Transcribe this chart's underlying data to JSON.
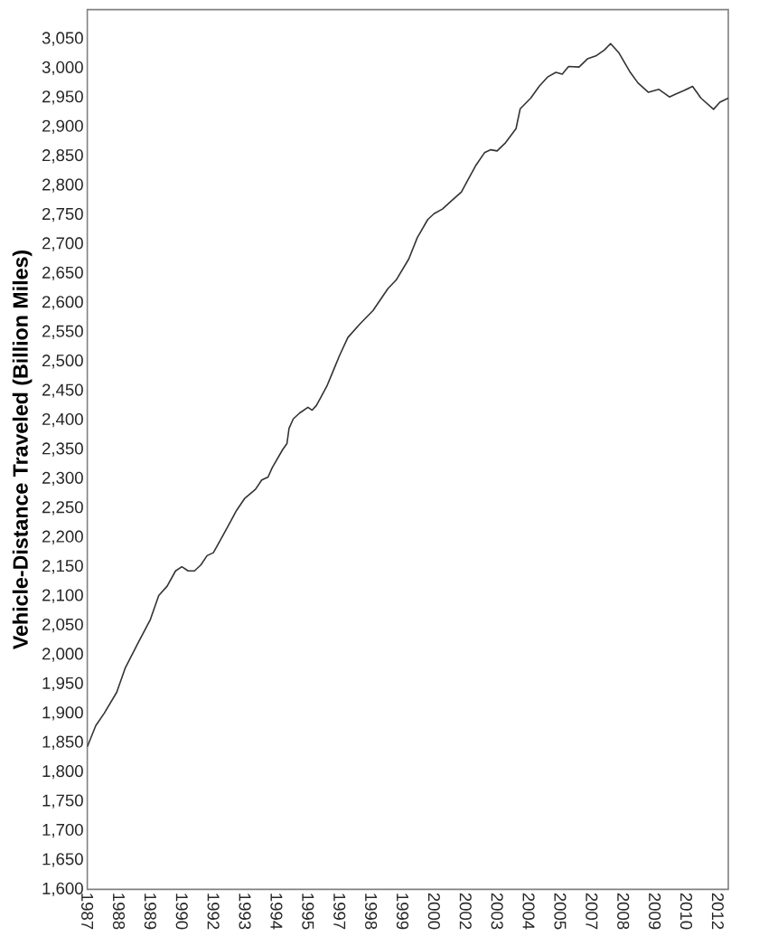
{
  "chart_data": {
    "type": "line",
    "ylabel": "Vehicle-Distance Traveled (Billion Miles)",
    "color": "#333333",
    "x": [
      "1987-01",
      "1987-05",
      "1987-09",
      "1988-03",
      "1988-07",
      "1989-01",
      "1989-07",
      "1989-11",
      "1990-03",
      "1990-07",
      "1990-10",
      "1991-01",
      "1991-04",
      "1991-07",
      "1991-10",
      "1992-01",
      "1992-05",
      "1992-09",
      "1992-12",
      "1993-04",
      "1993-09",
      "1993-12",
      "1994-03",
      "1994-05",
      "1994-10",
      "1994-12",
      "1995-01",
      "1995-03",
      "1995-06",
      "1995-10",
      "1995-12",
      "1996-02",
      "1996-04",
      "1996-07",
      "1996-10",
      "1997-01",
      "1997-05",
      "1997-11",
      "1998-05",
      "1998-12",
      "1999-04",
      "1999-10",
      "2000-02",
      "2000-07",
      "2000-10",
      "2001-02",
      "2001-06",
      "2001-11",
      "2002-02",
      "2002-06",
      "2002-10",
      "2003-01",
      "2003-04",
      "2003-08",
      "2004-01",
      "2004-03",
      "2004-08",
      "2004-12",
      "2005-04",
      "2005-08",
      "2005-11",
      "2006-02",
      "2006-07",
      "2006-11",
      "2007-03",
      "2007-07",
      "2007-10",
      "2008-02",
      "2008-07",
      "2008-11",
      "2009-04",
      "2009-09",
      "2010-02",
      "2010-05",
      "2010-09",
      "2011-01",
      "2011-05",
      "2011-11",
      "2012-02",
      "2012-06"
    ],
    "values": [
      1843,
      1879,
      1900,
      1936,
      1977,
      2019,
      2060,
      2101,
      2117,
      2143,
      2150,
      2143,
      2143,
      2153,
      2169,
      2174,
      2200,
      2226,
      2246,
      2267,
      2282,
      2298,
      2303,
      2319,
      2350,
      2360,
      2386,
      2402,
      2412,
      2422,
      2417,
      2425,
      2438,
      2458,
      2484,
      2510,
      2541,
      2565,
      2587,
      2624,
      2639,
      2675,
      2711,
      2742,
      2752,
      2760,
      2773,
      2789,
      2809,
      2835,
      2856,
      2861,
      2859,
      2873,
      2897,
      2931,
      2949,
      2969,
      2985,
      2993,
      2990,
      3003,
      3002,
      3016,
      3021,
      3031,
      3042,
      3026,
      2995,
      2975,
      2959,
      2964,
      2951,
      2956,
      2962,
      2969,
      2949,
      2930,
      2942,
      2949
    ],
    "xlim": [
      "1987-01",
      "2012-06"
    ],
    "xticks": [
      {
        "value": "1987-01",
        "label": "1987"
      },
      {
        "value": "1988-04",
        "label": "1988"
      },
      {
        "value": "1989-07",
        "label": "1989"
      },
      {
        "value": "1990-10",
        "label": "1990"
      },
      {
        "value": "1992-01",
        "label": "1992"
      },
      {
        "value": "1993-04",
        "label": "1993"
      },
      {
        "value": "1994-07",
        "label": "1994"
      },
      {
        "value": "1995-10",
        "label": "1995"
      },
      {
        "value": "1997-01",
        "label": "1997"
      },
      {
        "value": "1998-04",
        "label": "1998"
      },
      {
        "value": "1999-07",
        "label": "1999"
      },
      {
        "value": "2000-10",
        "label": "2000"
      },
      {
        "value": "2002-01",
        "label": "2002"
      },
      {
        "value": "2003-04",
        "label": "2003"
      },
      {
        "value": "2004-07",
        "label": "2004"
      },
      {
        "value": "2005-10",
        "label": "2005"
      },
      {
        "value": "2007-01",
        "label": "2007"
      },
      {
        "value": "2008-04",
        "label": "2008"
      },
      {
        "value": "2009-07",
        "label": "2009"
      },
      {
        "value": "2010-10",
        "label": "2010"
      },
      {
        "value": "2012-01",
        "label": "2012"
      }
    ],
    "ylim": [
      1600,
      3100
    ],
    "yticks": [
      {
        "value": 1600,
        "label": "1,600"
      },
      {
        "value": 1650,
        "label": "1,650"
      },
      {
        "value": 1700,
        "label": "1,700"
      },
      {
        "value": 1750,
        "label": "1,750"
      },
      {
        "value": 1800,
        "label": "1,800"
      },
      {
        "value": 1850,
        "label": "1,850"
      },
      {
        "value": 1900,
        "label": "1,900"
      },
      {
        "value": 1950,
        "label": "1,950"
      },
      {
        "value": 2000,
        "label": "2,000"
      },
      {
        "value": 2050,
        "label": "2,050"
      },
      {
        "value": 2100,
        "label": "2,100"
      },
      {
        "value": 2150,
        "label": "2,150"
      },
      {
        "value": 2200,
        "label": "2,200"
      },
      {
        "value": 2250,
        "label": "2,250"
      },
      {
        "value": 2300,
        "label": "2,300"
      },
      {
        "value": 2350,
        "label": "2,350"
      },
      {
        "value": 2400,
        "label": "2,400"
      },
      {
        "value": 2450,
        "label": "2,450"
      },
      {
        "value": 2500,
        "label": "2,500"
      },
      {
        "value": 2550,
        "label": "2,550"
      },
      {
        "value": 2600,
        "label": "2,600"
      },
      {
        "value": 2650,
        "label": "2,650"
      },
      {
        "value": 2700,
        "label": "2,700"
      },
      {
        "value": 2750,
        "label": "2,750"
      },
      {
        "value": 2800,
        "label": "2,800"
      },
      {
        "value": 2850,
        "label": "2,850"
      },
      {
        "value": 2900,
        "label": "2,900"
      },
      {
        "value": 2950,
        "label": "2,950"
      },
      {
        "value": 3000,
        "label": "3,000"
      },
      {
        "value": 3050,
        "label": "3,050"
      }
    ]
  }
}
